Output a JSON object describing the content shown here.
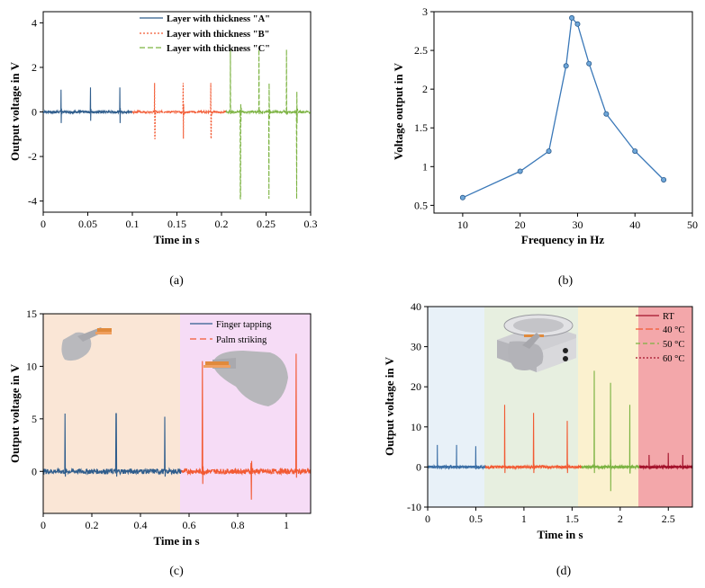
{
  "colors": {
    "blue": "#2f5d8c",
    "red": "#f25a33",
    "green": "#7cb342",
    "darkred": "#a3122b",
    "line_b": "#3a78b8",
    "bg_orange": "#fae6d6",
    "bg_pink": "#f6dcf6",
    "bg_d1": "#e8f1f8",
    "bg_d2": "#e7efe0",
    "bg_d3": "#fbf1cf",
    "bg_d4": "#f3a7aa"
  },
  "panels": [
    {
      "label": "(a)"
    },
    {
      "label": "(b)"
    },
    {
      "label": "(c)"
    },
    {
      "label": "(d)"
    }
  ],
  "chart_data": [
    {
      "id": "a",
      "type": "line",
      "title": "",
      "xlabel": "Time in s",
      "ylabel": "Output voltage in V",
      "xlim": [
        0,
        0.3
      ],
      "ylim": [
        -4.5,
        4.5
      ],
      "xticks": [
        "0",
        "0.05",
        "0.1",
        "0.15",
        "0.2",
        "0.25",
        "0.3"
      ],
      "yticks": [
        "-4",
        "-2",
        "0",
        "2",
        "4"
      ],
      "legend": [
        "Layer with thickness \"A\"",
        "Layer with thickness \"B\"",
        "Layer with thickness \"C\""
      ],
      "series": [
        {
          "name": "Layer with thickness \"A\"",
          "x_range": [
            0,
            0.1
          ],
          "peaks": [
            [
              0.02,
              1.0,
              -0.5
            ],
            [
              0.053,
              1.1,
              -0.4
            ],
            [
              0.086,
              1.1,
              -0.5
            ]
          ]
        },
        {
          "name": "Layer with thickness \"B\"",
          "x_range": [
            0.1,
            0.205
          ],
          "peaks": [
            [
              0.125,
              1.3,
              -1.2
            ],
            [
              0.157,
              1.3,
              -1.2
            ],
            [
              0.188,
              1.3,
              -1.2
            ]
          ]
        },
        {
          "name": "Layer with thickness \"C\"",
          "x_range": [
            0.205,
            0.3
          ],
          "peaks": [
            [
              0.21,
              2.8,
              -0.1
            ],
            [
              0.221,
              0.1,
              -3.9
            ],
            [
              0.242,
              2.8,
              -0.1
            ],
            [
              0.253,
              0.1,
              -3.9
            ],
            [
              0.273,
              2.8,
              -0.1
            ],
            [
              0.284,
              0.1,
              -3.9
            ]
          ]
        }
      ]
    },
    {
      "id": "b",
      "type": "line",
      "xlabel": "Frequency in Hz",
      "ylabel": "Voltage output in V",
      "xlim": [
        5,
        50
      ],
      "ylim": [
        0.4,
        3
      ],
      "xticks": [
        "10",
        "20",
        "30",
        "40",
        "50"
      ],
      "yticks": [
        "0.5",
        "1",
        "1.5",
        "2",
        "2.5",
        "3"
      ],
      "x": [
        10,
        20,
        25,
        28,
        29,
        30,
        32,
        35,
        40,
        45
      ],
      "y": [
        0.6,
        0.94,
        1.2,
        2.3,
        2.92,
        2.84,
        2.33,
        1.68,
        1.2,
        0.83
      ]
    },
    {
      "id": "c",
      "type": "line",
      "xlabel": "Time in s",
      "ylabel": "Output voltage in V",
      "xlim": [
        0,
        1.1
      ],
      "ylim": [
        -4,
        15
      ],
      "xticks": [
        "0",
        "0.2",
        "0.4",
        "0.6",
        "0.8",
        "1"
      ],
      "yticks": [
        "0",
        "5",
        "10",
        "15"
      ],
      "legend": [
        "Finger tapping",
        "Palm striking"
      ],
      "series": [
        {
          "name": "Finger tapping",
          "x_range": [
            0,
            0.57
          ],
          "peaks": [
            [
              0.09,
              5.5,
              -0.5
            ],
            [
              0.3,
              5.5,
              -0.5
            ],
            [
              0.5,
              5.2,
              -0.5
            ]
          ]
        },
        {
          "name": "Palm striking",
          "x_range": [
            0.57,
            1.1
          ],
          "peaks": [
            [
              0.655,
              10.5,
              -1.2
            ],
            [
              0.855,
              0.8,
              -2.7
            ],
            [
              1.04,
              11.2,
              -0.6
            ]
          ]
        }
      ]
    },
    {
      "id": "d",
      "type": "line",
      "xlabel": "Time in s",
      "ylabel": "Output voltage in V",
      "xlim": [
        0,
        2.75
      ],
      "ylim": [
        -10,
        40
      ],
      "xticks": [
        "0",
        "0.5",
        "1",
        "1.5",
        "2",
        "2.5"
      ],
      "yticks": [
        "-10",
        "0",
        "10",
        "20",
        "30",
        "40"
      ],
      "legend": [
        "RT",
        "40 °C",
        "50 °C",
        "60 °C"
      ],
      "series": [
        {
          "name": "RT",
          "x_range": [
            0,
            0.6
          ],
          "peaks": [
            [
              0.1,
              5.5,
              -0.5
            ],
            [
              0.3,
              5.5,
              -0.5
            ],
            [
              0.5,
              5.2,
              -0.5
            ]
          ]
        },
        {
          "name": "40 °C",
          "x_range": [
            0.6,
            1.6
          ],
          "peaks": [
            [
              0.8,
              15.5,
              -1.5
            ],
            [
              1.1,
              13.5,
              -1.5
            ],
            [
              1.45,
              11.5,
              -1.5
            ]
          ]
        },
        {
          "name": "50 °C",
          "x_range": [
            1.6,
            2.2
          ],
          "peaks": [
            [
              1.73,
              24,
              -1.5
            ],
            [
              1.9,
              21,
              -6
            ],
            [
              2.1,
              15.5,
              -1.5
            ]
          ]
        },
        {
          "name": "60 °C",
          "x_range": [
            2.2,
            2.75
          ],
          "peaks": [
            [
              2.3,
              3,
              -0.5
            ],
            [
              2.5,
              3.5,
              -0.5
            ],
            [
              2.65,
              3,
              -0.5
            ]
          ]
        }
      ]
    }
  ]
}
